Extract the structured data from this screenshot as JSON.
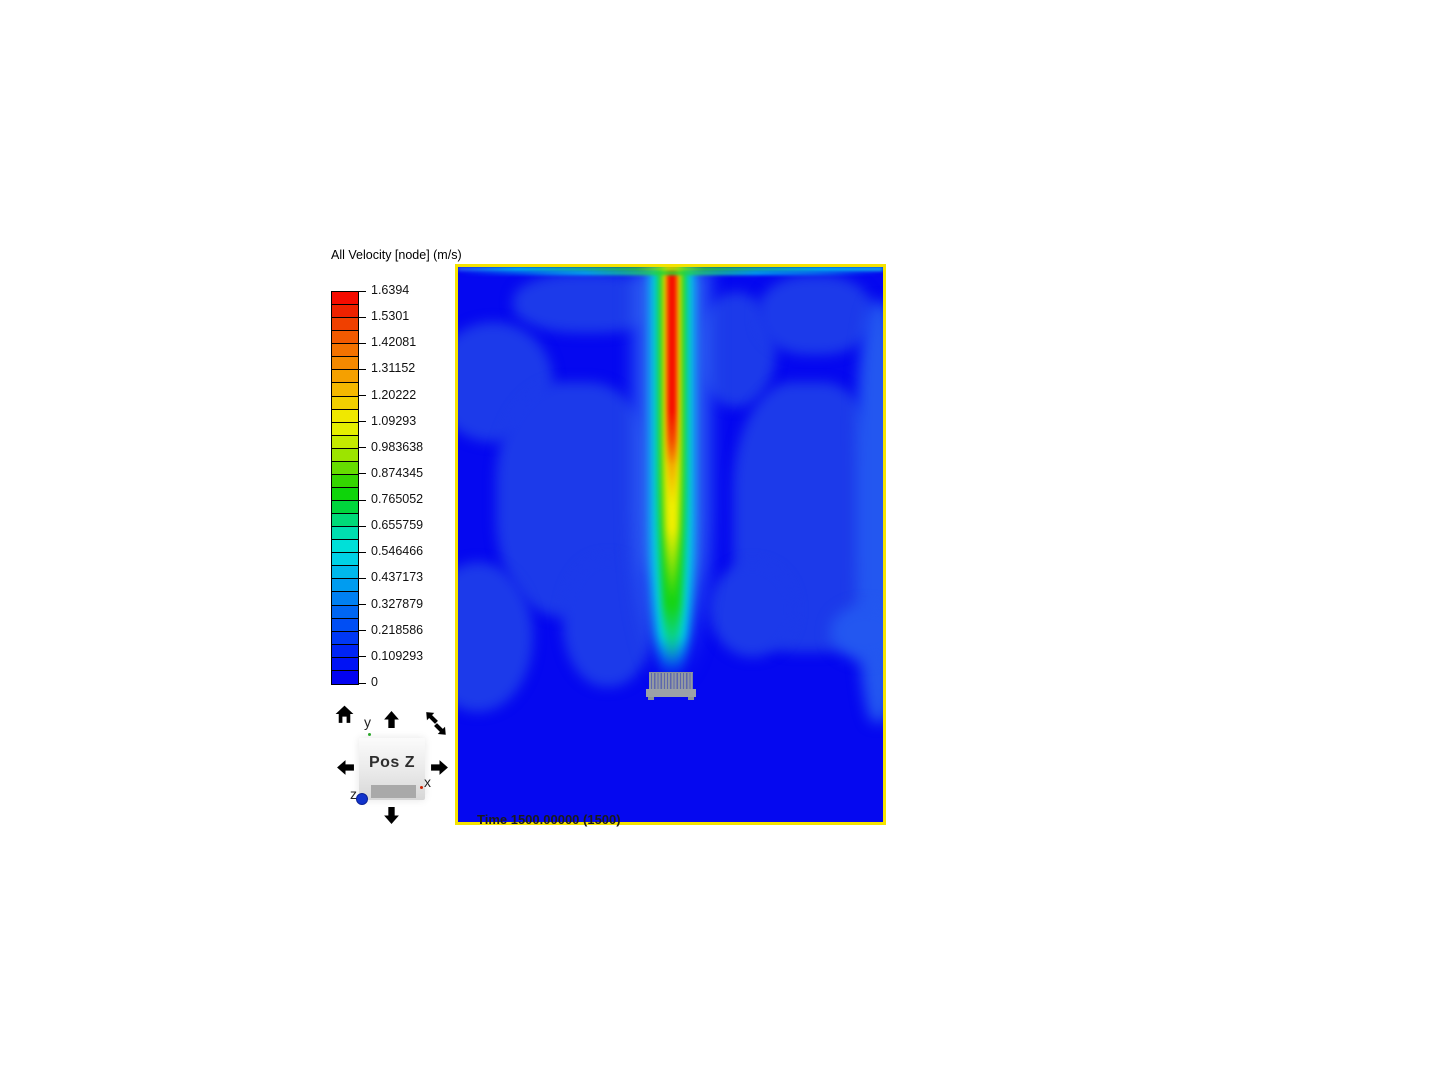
{
  "legend": {
    "title": "All Velocity [node] (m/s)",
    "tick_labels": [
      "1.6394",
      "1.5301",
      "1.42081",
      "1.31152",
      "1.20222",
      "1.09293",
      "0.983638",
      "0.874345",
      "0.765052",
      "0.655759",
      "0.546466",
      "0.437173",
      "0.327879",
      "0.218586",
      "0.109293",
      "0"
    ],
    "segment_colors": [
      "#f50c00",
      "#ee2200",
      "#f04000",
      "#f25a00",
      "#f37200",
      "#f48900",
      "#f5a000",
      "#f5b800",
      "#f2d000",
      "#f0e800",
      "#e4ee00",
      "#c4ea00",
      "#9ce400",
      "#66dc00",
      "#34d600",
      "#0ed40a",
      "#00d63c",
      "#00da78",
      "#00deb0",
      "#00e0d8",
      "#00d2e6",
      "#00b8ec",
      "#009cf0",
      "#0080f2",
      "#0066f3",
      "#004ef4",
      "#0038f5",
      "#0024f5",
      "#0012f5",
      "#0202f0"
    ]
  },
  "viewport": {
    "time_label": "Time 1500.00000 (1500)",
    "border_color": "#f5e300",
    "base_color": "#0508f0",
    "patch_color": "#1c3aea"
  },
  "nav": {
    "button_label": "Pos Z",
    "axes": {
      "x": "x",
      "y": "y",
      "z": "z"
    },
    "axis_dot_colors": {
      "x": "#cc2200",
      "y": "#2da82d",
      "z": "#1133cc"
    }
  },
  "chart_data": {
    "type": "heatmap",
    "title": "All Velocity [node] (m/s)",
    "colorbar_values": [
      1.6394,
      1.5301,
      1.42081,
      1.31152,
      1.20222,
      1.09293,
      0.983638,
      0.874345,
      0.765052,
      0.655759,
      0.546466,
      0.437173,
      0.327879,
      0.218586,
      0.109293,
      0
    ],
    "value_max": 1.6394,
    "value_min": 0,
    "time_stamp": "Time 1500.00000 (1500)",
    "legend_position": "left"
  }
}
